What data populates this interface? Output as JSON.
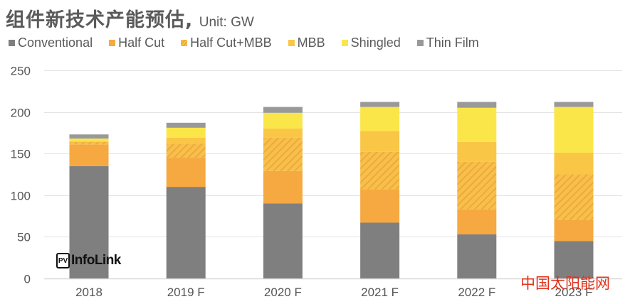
{
  "title": {
    "main": "组件新技术产能预估",
    "separator": ",",
    "unit": "Unit: GW"
  },
  "logo": {
    "badge": "PV",
    "name": "InfoLink"
  },
  "watermark": "中国太阳能网",
  "chart_data": {
    "type": "bar",
    "stacked": true,
    "title": "组件新技术产能预估, Unit: GW",
    "xlabel": "",
    "ylabel": "GW",
    "ylim": [
      0,
      250
    ],
    "yticks": [
      0,
      50,
      100,
      150,
      200,
      250
    ],
    "ytick_labels": [
      "0",
      "50",
      "100",
      "150",
      "200",
      "250"
    ],
    "grid": true,
    "legend_position": "top",
    "categories": [
      "2018",
      "2019 F",
      "2020 F",
      "2021 F",
      "2022 F",
      "2023 F"
    ],
    "series": [
      {
        "name": "Conventional",
        "color": "#7f7f7f",
        "pattern": "solid",
        "values": [
          135,
          110,
          90,
          67,
          53,
          45
        ]
      },
      {
        "name": "Half Cut",
        "color": "#f5a940",
        "pattern": "solid",
        "values": [
          26,
          35,
          39,
          40,
          30,
          25
        ]
      },
      {
        "name": "Half Cut+MBB",
        "color": "#f5b53c",
        "pattern": "hatch",
        "values": [
          3,
          17,
          40,
          45,
          57,
          55
        ]
      },
      {
        "name": "MBB",
        "color": "#f9c646",
        "pattern": "solid",
        "values": [
          1,
          7,
          11,
          25,
          24,
          26
        ]
      },
      {
        "name": "Shingled",
        "color": "#fbe64a",
        "pattern": "solid",
        "values": [
          3,
          12,
          19,
          29,
          41,
          55
        ]
      },
      {
        "name": "Thin Film",
        "color": "#999999",
        "pattern": "solid",
        "values": [
          5,
          6,
          7,
          6,
          7,
          6
        ]
      }
    ]
  }
}
